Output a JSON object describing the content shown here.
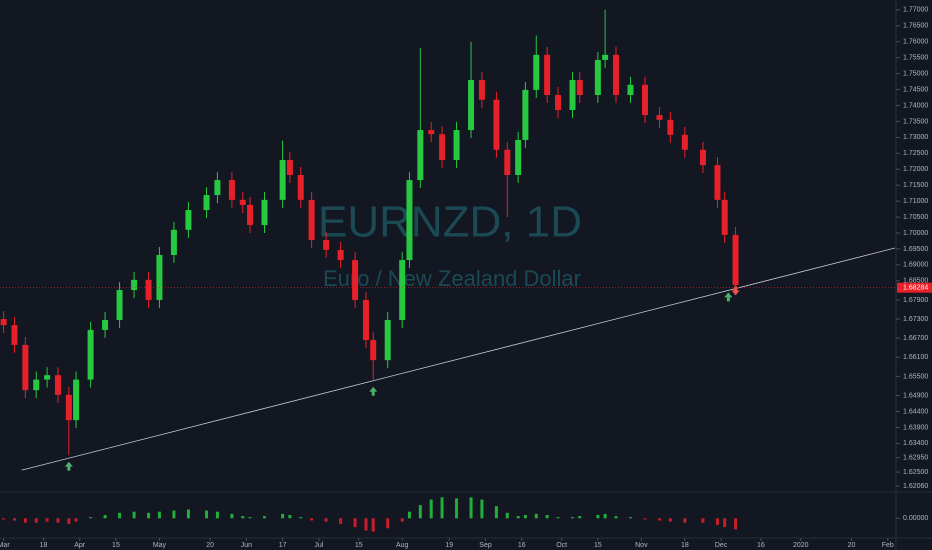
{
  "chart_data": [
    {
      "type": "candlestick",
      "title": "EURNZD, 1D",
      "subtitle": "Euro / New Zealand Dollar",
      "up_color": "#26c940",
      "down_color": "#e8202a",
      "x": [
        0,
        3,
        6,
        9,
        12,
        15,
        18,
        20,
        24,
        28,
        32,
        36,
        40,
        43,
        47,
        51,
        56,
        59,
        63,
        66,
        68,
        72,
        77,
        79,
        82,
        85,
        89,
        93,
        97,
        100,
        102,
        106,
        110,
        112,
        115,
        118,
        121,
        125,
        129,
        132,
        136,
        139,
        142,
        144,
        147,
        150,
        153,
        157,
        159,
        164,
        166,
        169,
        173,
        177,
        181,
        184,
        188,
        193,
        197,
        199,
        202
      ],
      "open": [
        1.673,
        1.6711,
        1.6649,
        1.6507,
        1.654,
        1.6554,
        1.6492,
        1.6413,
        1.654,
        1.6696,
        1.6727,
        1.6821,
        1.6853,
        1.679,
        1.6931,
        1.701,
        1.7072,
        1.7119,
        1.7166,
        1.7104,
        1.7088,
        1.7025,
        1.7104,
        1.7229,
        1.7182,
        1.7104,
        1.6978,
        1.6947,
        1.6915,
        1.679,
        1.6664,
        1.6601,
        1.6727,
        1.6915,
        1.7166,
        1.7323,
        1.731,
        1.7229,
        1.7323,
        1.748,
        1.7418,
        1.7261,
        1.7182,
        1.7292,
        1.7449,
        1.7559,
        1.7433,
        1.7386,
        1.748,
        1.7433,
        1.7543,
        1.7559,
        1.7433,
        1.7465,
        1.737,
        1.7355,
        1.7308,
        1.7261,
        1.7213,
        1.7104,
        1.6994
      ],
      "high": [
        1.6755,
        1.6736,
        1.6674,
        1.6565,
        1.6579,
        1.6579,
        1.6517,
        1.6565,
        1.6721,
        1.6752,
        1.6846,
        1.6878,
        1.6878,
        1.6956,
        1.7035,
        1.7097,
        1.7144,
        1.7191,
        1.7191,
        1.7129,
        1.7113,
        1.7129,
        1.729,
        1.7254,
        1.7207,
        1.7129,
        1.7003,
        1.6972,
        1.694,
        1.6815,
        1.6689,
        1.6752,
        1.694,
        1.7191,
        1.758,
        1.7348,
        1.7335,
        1.7348,
        1.76,
        1.7505,
        1.7443,
        1.7286,
        1.7317,
        1.7474,
        1.762,
        1.7584,
        1.7458,
        1.7505,
        1.7505,
        1.7568,
        1.77,
        1.7584,
        1.749,
        1.749,
        1.7395,
        1.738,
        1.7333,
        1.7286,
        1.7238,
        1.7129,
        1.7019
      ],
      "low": [
        1.6686,
        1.6624,
        1.6482,
        1.6482,
        1.6515,
        1.6467,
        1.6303,
        1.6388,
        1.6515,
        1.6671,
        1.6702,
        1.6796,
        1.6765,
        1.6765,
        1.6906,
        1.6985,
        1.7047,
        1.7094,
        1.7079,
        1.7063,
        1.7,
        1.7,
        1.7079,
        1.7157,
        1.7079,
        1.6953,
        1.6922,
        1.689,
        1.6765,
        1.6639,
        1.654,
        1.6576,
        1.6702,
        1.689,
        1.7141,
        1.7285,
        1.7204,
        1.7204,
        1.7298,
        1.7393,
        1.7236,
        1.705,
        1.7157,
        1.7267,
        1.7424,
        1.7408,
        1.7361,
        1.7361,
        1.7408,
        1.7408,
        1.7518,
        1.7408,
        1.7408,
        1.7345,
        1.733,
        1.7283,
        1.7236,
        1.7188,
        1.7079,
        1.6969,
        1.6812
      ],
      "close": [
        1.6711,
        1.6649,
        1.6507,
        1.654,
        1.6554,
        1.6492,
        1.6413,
        1.654,
        1.6696,
        1.6727,
        1.6821,
        1.6853,
        1.679,
        1.6931,
        1.701,
        1.7072,
        1.7119,
        1.7166,
        1.7104,
        1.7088,
        1.7025,
        1.7104,
        1.7229,
        1.7182,
        1.7104,
        1.6978,
        1.6947,
        1.6915,
        1.679,
        1.6664,
        1.6601,
        1.6727,
        1.6915,
        1.7166,
        1.7323,
        1.731,
        1.7229,
        1.7323,
        1.748,
        1.7418,
        1.7261,
        1.7182,
        1.7292,
        1.7449,
        1.7559,
        1.7433,
        1.7386,
        1.748,
        1.7433,
        1.7543,
        1.7559,
        1.7433,
        1.7465,
        1.737,
        1.7355,
        1.7308,
        1.7261,
        1.7213,
        1.7104,
        1.6994,
        1.6837
      ],
      "xlim": [
        -1,
        246
      ],
      "xticks": [
        {
          "value": 0,
          "label": "Mar"
        },
        {
          "value": 11,
          "label": "18"
        },
        {
          "value": 21,
          "label": "Apr"
        },
        {
          "value": 31,
          "label": "15"
        },
        {
          "value": 43,
          "label": "May"
        },
        {
          "value": 57,
          "label": "20"
        },
        {
          "value": 67,
          "label": "Jun"
        },
        {
          "value": 77,
          "label": "17"
        },
        {
          "value": 87,
          "label": "Jul"
        },
        {
          "value": 98,
          "label": "15"
        },
        {
          "value": 110,
          "label": "Aug"
        },
        {
          "value": 123,
          "label": "19"
        },
        {
          "value": 133,
          "label": "Sep"
        },
        {
          "value": 143,
          "label": "16"
        },
        {
          "value": 154,
          "label": "Oct"
        },
        {
          "value": 164,
          "label": "15"
        },
        {
          "value": 176,
          "label": "Nov"
        },
        {
          "value": 188,
          "label": "18"
        },
        {
          "value": 198,
          "label": "Dec"
        },
        {
          "value": 209,
          "label": "16"
        },
        {
          "value": 220,
          "label": "2020"
        },
        {
          "value": 234,
          "label": "20"
        },
        {
          "value": 244,
          "label": "Feb"
        }
      ],
      "ylim": [
        1.62,
        1.7731
      ],
      "yticks": [
        {
          "value": 1.77,
          "label": "1.77000"
        },
        {
          "value": 1.765,
          "label": "1.76500"
        },
        {
          "value": 1.76,
          "label": "1.76000"
        },
        {
          "value": 1.755,
          "label": "1.75500"
        },
        {
          "value": 1.75,
          "label": "1.75000"
        },
        {
          "value": 1.745,
          "label": "1.74500"
        },
        {
          "value": 1.74,
          "label": "1.74000"
        },
        {
          "value": 1.735,
          "label": "1.73500"
        },
        {
          "value": 1.73,
          "label": "1.73000"
        },
        {
          "value": 1.725,
          "label": "1.72500"
        },
        {
          "value": 1.72,
          "label": "1.72000"
        },
        {
          "value": 1.715,
          "label": "1.71500"
        },
        {
          "value": 1.71,
          "label": "1.71000"
        },
        {
          "value": 1.705,
          "label": "1.70500"
        },
        {
          "value": 1.7,
          "label": "1.70000"
        },
        {
          "value": 1.695,
          "label": "1.69500"
        },
        {
          "value": 1.69,
          "label": "1.69000"
        },
        {
          "value": 1.685,
          "label": "1.68500"
        },
        {
          "value": 1.679,
          "label": "1.67900"
        },
        {
          "value": 1.673,
          "label": "1.67300"
        },
        {
          "value": 1.667,
          "label": "1.66700"
        },
        {
          "value": 1.661,
          "label": "1.66100"
        },
        {
          "value": 1.655,
          "label": "1.65500"
        },
        {
          "value": 1.649,
          "label": "1.64900"
        },
        {
          "value": 1.644,
          "label": "1.64400"
        },
        {
          "value": 1.639,
          "label": "1.63900"
        },
        {
          "value": 1.634,
          "label": "1.63400"
        },
        {
          "value": 1.6295,
          "label": "1.62950"
        },
        {
          "value": 1.625,
          "label": "1.62500"
        },
        {
          "value": 1.6206,
          "label": "1.62060"
        }
      ],
      "last_price": 1.68284,
      "trendline": {
        "x": [
          5,
          246
        ],
        "y": [
          1.6256,
          1.6953
        ],
        "color": "#c8cad0"
      },
      "buy_signals": {
        "x": [
          18,
          102,
          200
        ],
        "y": [
          1.6267,
          1.6502,
          1.6798
        ],
        "color": "#4caf6a"
      },
      "sell_signals": {
        "x": [
          202
        ],
        "y": [
          1.682
        ],
        "color": "#ef5350"
      }
    },
    {
      "type": "histogram_bar",
      "up_color": "#26c940",
      "down_color": "#e8202a",
      "x": [
        0,
        3,
        6,
        9,
        12,
        15,
        18,
        20,
        24,
        28,
        32,
        36,
        40,
        43,
        47,
        51,
        56,
        59,
        63,
        66,
        68,
        72,
        77,
        79,
        82,
        85,
        89,
        93,
        97,
        100,
        102,
        106,
        110,
        112,
        115,
        118,
        121,
        125,
        129,
        132,
        136,
        139,
        142,
        144,
        147,
        150,
        153,
        157,
        159,
        164,
        166,
        169,
        173,
        177,
        181,
        184,
        188,
        193,
        197,
        199,
        202
      ],
      "values": [
        -0.0001,
        -0.0002,
        -0.0004,
        -0.0004,
        -0.0003,
        -0.0004,
        -0.0005,
        -0.0003,
        0.0001,
        0.0003,
        0.0005,
        0.0006,
        0.0005,
        0.0006,
        0.0007,
        0.0008,
        0.0007,
        0.0006,
        0.0004,
        0.0002,
        0.0001,
        0.0002,
        0.0004,
        0.0003,
        0.0001,
        -0.0002,
        -0.0003,
        -0.0005,
        -0.0008,
        -0.0011,
        -0.0012,
        -0.0009,
        -0.0003,
        0.0006,
        0.0012,
        0.0017,
        0.0019,
        0.0018,
        0.0019,
        0.0017,
        0.0011,
        0.0005,
        0.0002,
        0.0003,
        0.0004,
        0.0003,
        0.0001,
        0.0001,
        0.0002,
        0.0003,
        0.0004,
        0.0002,
        0.0001,
        -0.0001,
        -0.0002,
        -0.0003,
        -0.0004,
        -0.0004,
        -0.0006,
        -0.0008,
        -0.001
      ],
      "ylim": [
        -0.0016,
        0.0022
      ],
      "yticks": [
        {
          "value": 0,
          "label": "0.00000"
        }
      ]
    }
  ]
}
